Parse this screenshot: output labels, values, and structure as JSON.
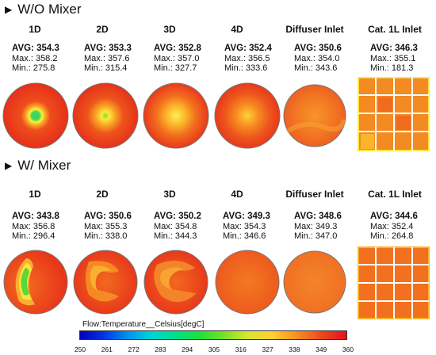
{
  "sections": [
    {
      "title": "W/O Mixer",
      "columns": [
        {
          "label": "1D",
          "avg": "AVG: 354.3",
          "max": "Max.: 358.2",
          "min": "Min.: 275.8"
        },
        {
          "label": "2D",
          "avg": "AVG: 353.3",
          "max": "Max.: 357.6",
          "min": "Min.: 315.4"
        },
        {
          "label": "3D",
          "avg": "AVG: 352.8",
          "max": "Max.: 357.0",
          "min": "Min.: 327.7"
        },
        {
          "label": "4D",
          "avg": "AVG: 352.4",
          "max": "Max.: 356.5",
          "min": "Min.: 333.6"
        },
        {
          "label": "Diffuser Inlet",
          "avg": "AVG: 350.6",
          "max": "Max.: 354.0",
          "min": "Min.: 343.6"
        },
        {
          "label": "Cat. 1L Inlet",
          "avg": "AVG: 346.3",
          "max": "Max.: 355.1",
          "min": "Min.: 181.3"
        }
      ]
    },
    {
      "title": "W/ Mixer",
      "columns": [
        {
          "label": "1D",
          "avg": "AVG: 343.8",
          "max": "Max: 356.8",
          "min": "Min.: 296.4"
        },
        {
          "label": "2D",
          "avg": "AVG: 350.6",
          "max": "Max: 355.3",
          "min": "Min.: 338.0"
        },
        {
          "label": "3D",
          "avg": "AVG: 350.2",
          "max": "Max: 354.8",
          "min": "Min.: 344.3"
        },
        {
          "label": "4D",
          "avg": "AVG: 349.3",
          "max": "Max: 354.3",
          "min": "Min.: 346.6"
        },
        {
          "label": "Diffuser Inlet",
          "avg": "AVG: 348.6",
          "max": "Max: 349.3",
          "min": "Min.: 347.0"
        },
        {
          "label": "Cat. 1L Inlet",
          "avg": "AVG: 344.6",
          "max": "Max: 352.4",
          "min": "Min.: 264.8"
        }
      ]
    }
  ],
  "legend": {
    "title": "Flow:Temperature__Celsius[degC]",
    "ticks": [
      "250",
      "261",
      "272",
      "283",
      "294",
      "305",
      "316",
      "327",
      "338",
      "349",
      "360"
    ]
  },
  "colors": {
    "red": "#e8341c",
    "orange_red": "#f05a1a",
    "orange": "#f7881e",
    "yellow": "#ffe03a",
    "green": "#3cdc3c",
    "cyan": "#30d8c8"
  }
}
